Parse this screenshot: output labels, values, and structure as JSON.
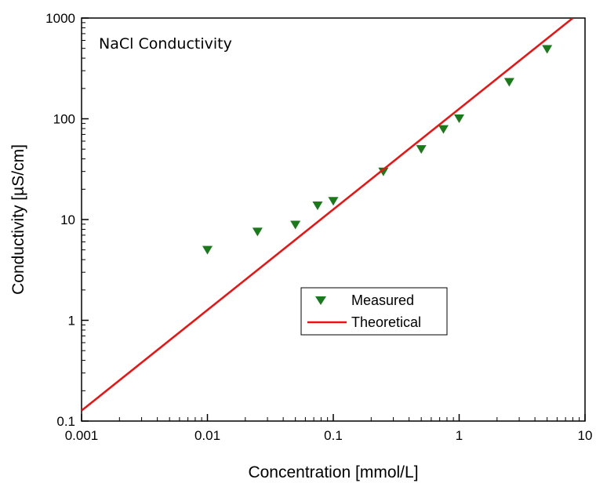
{
  "chart_data": {
    "type": "scatter",
    "title": "NaCl Conductivity",
    "xlabel": "Concentration [mmol/L]",
    "ylabel": "Conductivity [µS/cm]",
    "xscale": "log",
    "yscale": "log",
    "xlim": [
      0.001,
      10
    ],
    "ylim": [
      0.1,
      1000
    ],
    "x_ticks": [
      "0.001",
      "0.01",
      "0.1",
      "1",
      "10"
    ],
    "y_ticks": [
      "0.1",
      "1",
      "10",
      "100",
      "1000"
    ],
    "grid": false,
    "legend_position": "center",
    "series": [
      {
        "name": "Measured",
        "kind": "scatter",
        "marker": "triangle-down",
        "color": "#1a7a1a",
        "x": [
          0.01,
          0.025,
          0.05,
          0.075,
          0.1,
          0.25,
          0.5,
          0.75,
          1,
          2.5,
          5
        ],
        "y": [
          5,
          7.6,
          8.9,
          13.8,
          15.3,
          30,
          50,
          79,
          101,
          232,
          493
        ]
      },
      {
        "name": "Theoretical",
        "kind": "line",
        "color": "#ee1111",
        "x": [
          0.001,
          8.0
        ],
        "y": [
          0.127,
          1000
        ]
      }
    ]
  }
}
